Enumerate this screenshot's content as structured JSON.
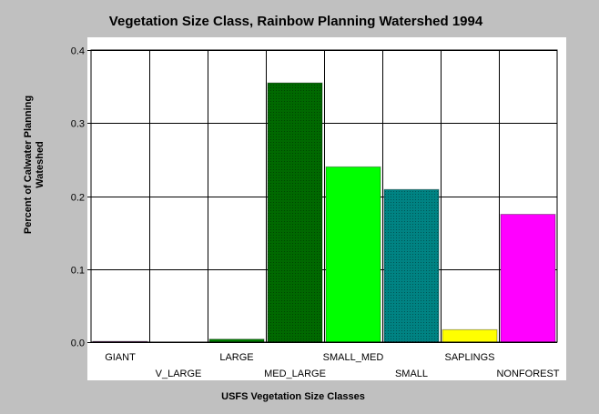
{
  "chart_data": {
    "type": "bar",
    "title": "Vegetation Size Class, Rainbow Planning Watershed 1994",
    "xlabel": "USFS Vegetation Size Classes",
    "ylabel_lines": [
      "Percent of Calwater Planning",
      "Wateshed"
    ],
    "ylim": [
      0,
      0.4
    ],
    "yticks": [
      "0.0",
      "0.1",
      "0.2",
      "0.3",
      "0.4"
    ],
    "categories": [
      "GIANT",
      "V_LARGE",
      "LARGE",
      "MED_LARGE",
      "SMALL_MED",
      "SMALL",
      "SAPLINGS",
      "NONFOREST"
    ],
    "values": [
      0.001,
      0.0,
      0.004,
      0.355,
      0.24,
      0.209,
      0.017,
      0.175
    ],
    "colors": [
      "#800080",
      "#0000ff",
      "#008000",
      "#008000",
      "#00ff00",
      "#00a0a0",
      "#ffff00",
      "#ff00ff"
    ],
    "hatched": [
      false,
      false,
      false,
      true,
      false,
      true,
      false,
      false
    ],
    "grid": true,
    "legend": "none"
  }
}
